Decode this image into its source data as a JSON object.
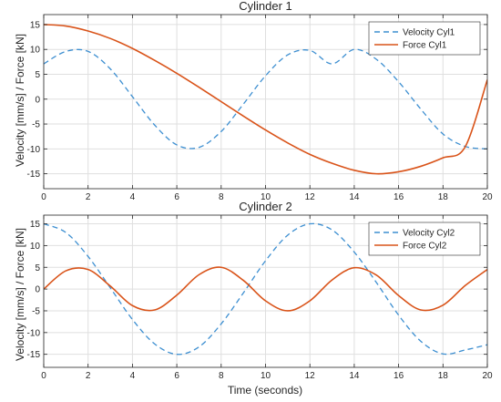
{
  "figure": {
    "xlabel": "Time (seconds)",
    "ylabel": "Velocity [mm/s] / Force [kN]"
  },
  "chart_data": [
    {
      "type": "line",
      "title": "Cylinder 1",
      "xlabel": "",
      "ylabel": "Velocity [mm/s] / Force [kN]",
      "xlim": [
        0,
        20
      ],
      "ylim": [
        -18,
        17
      ],
      "xticks": [
        0,
        2,
        4,
        6,
        8,
        10,
        12,
        14,
        16,
        18,
        20
      ],
      "yticks": [
        -15,
        -10,
        -5,
        0,
        5,
        10,
        15
      ],
      "grid": true,
      "legend_position": "top-right",
      "x": [
        0,
        1,
        2,
        3,
        4,
        5,
        6,
        7,
        8,
        9,
        10,
        11,
        12,
        13,
        14,
        15,
        16,
        17,
        18,
        19,
        20
      ],
      "series": [
        {
          "name": "Velocity Cyl1",
          "style": "dashed",
          "color": "#3d8fd1",
          "values": [
            7.1,
            9.6,
            9.6,
            6.1,
            0.5,
            -5.2,
            -9.2,
            -9.7,
            -6.5,
            -1.0,
            4.7,
            8.9,
            9.8,
            7.1,
            10.0,
            8.0,
            3.5,
            -2.0,
            -7.0,
            -9.5,
            -10.0
          ]
        },
        {
          "name": "Force Cyl1",
          "style": "solid",
          "color": "#d95319",
          "values": [
            15.0,
            14.7,
            13.7,
            12.2,
            10.2,
            7.8,
            5.2,
            2.4,
            -0.5,
            -3.4,
            -6.2,
            -8.8,
            -11.1,
            -12.9,
            -14.3,
            -15.0,
            -14.6,
            -13.5,
            -11.8,
            -9.6,
            3.9
          ]
        }
      ]
    },
    {
      "type": "line",
      "title": "Cylinder 2",
      "xlabel": "Time (seconds)",
      "ylabel": "Velocity [mm/s] / Force [kN]",
      "xlim": [
        0,
        20
      ],
      "ylim": [
        -18,
        17
      ],
      "xticks": [
        0,
        2,
        4,
        6,
        8,
        10,
        12,
        14,
        16,
        18,
        20
      ],
      "yticks": [
        -15,
        -10,
        -5,
        0,
        5,
        10,
        15
      ],
      "grid": true,
      "legend_position": "top-right",
      "x": [
        0,
        1,
        2,
        3,
        4,
        5,
        6,
        7,
        8,
        9,
        10,
        11,
        12,
        13,
        14,
        15,
        16,
        17,
        18,
        19,
        20
      ],
      "series": [
        {
          "name": "Velocity Cyl2",
          "style": "dashed",
          "color": "#3d8fd1",
          "values": [
            15.0,
            13.0,
            7.5,
            0.3,
            -7.0,
            -12.6,
            -15.0,
            -13.3,
            -8.0,
            -0.9,
            6.5,
            12.4,
            15.0,
            13.6,
            8.5,
            1.5,
            -6.0,
            -12.0,
            -14.9,
            -14.0,
            -12.8
          ]
        },
        {
          "name": "Force Cyl2",
          "style": "solid",
          "color": "#d95319",
          "values": [
            0.0,
            4.2,
            4.5,
            0.7,
            -3.8,
            -4.8,
            -1.4,
            3.3,
            5.0,
            2.0,
            -2.7,
            -5.0,
            -2.7,
            2.1,
            4.9,
            3.2,
            -1.5,
            -4.8,
            -3.7,
            0.8,
            4.5
          ]
        }
      ]
    }
  ]
}
